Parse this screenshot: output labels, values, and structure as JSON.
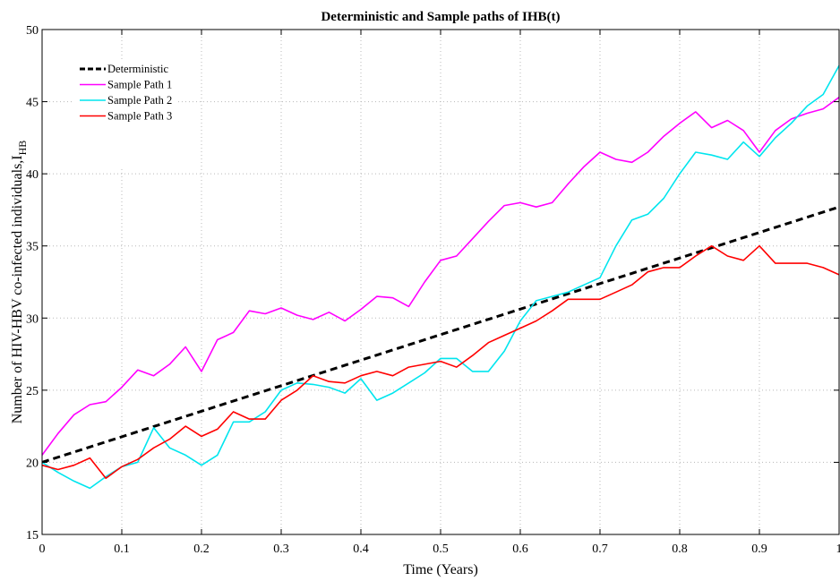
{
  "chart_data": {
    "type": "line",
    "title": "Deterministic and Sample paths of IHB(t)",
    "xlabel": "Time (Years)",
    "ylabel": "Number of HIV-HBV co-infected individuals,I",
    "ylabel_subscript": "HB",
    "xlim": [
      0,
      1
    ],
    "ylim": [
      15,
      50
    ],
    "xticks": [
      "0",
      "0.1",
      "0.2",
      "0.3",
      "0.4",
      "0.5",
      "0.6",
      "0.7",
      "0.8",
      "0.9",
      "1"
    ],
    "yticks": [
      "15",
      "20",
      "25",
      "30",
      "35",
      "40",
      "45",
      "50"
    ],
    "grid": true,
    "legend_position": "top-left",
    "series": [
      {
        "name": "Deterministic",
        "color": "#000000",
        "style": "dashed",
        "x": [
          0,
          1
        ],
        "y": [
          20.0,
          37.7
        ]
      },
      {
        "name": "Sample Path 1",
        "color": "#ff00ff",
        "style": "solid",
        "x": [
          0,
          0.02,
          0.04,
          0.06,
          0.08,
          0.1,
          0.12,
          0.14,
          0.16,
          0.18,
          0.2,
          0.22,
          0.24,
          0.26,
          0.28,
          0.3,
          0.32,
          0.34,
          0.36,
          0.38,
          0.4,
          0.42,
          0.44,
          0.46,
          0.48,
          0.5,
          0.52,
          0.54,
          0.56,
          0.58,
          0.6,
          0.62,
          0.64,
          0.66,
          0.68,
          0.7,
          0.72,
          0.74,
          0.76,
          0.78,
          0.8,
          0.82,
          0.84,
          0.86,
          0.88,
          0.9,
          0.92,
          0.94,
          0.96,
          0.98,
          1.0
        ],
        "y": [
          20.5,
          22.0,
          23.3,
          24.0,
          24.2,
          25.2,
          26.4,
          26.0,
          26.8,
          28.0,
          26.3,
          28.5,
          29.0,
          30.5,
          30.3,
          30.7,
          30.2,
          29.9,
          30.4,
          29.8,
          30.6,
          31.5,
          31.4,
          30.8,
          32.5,
          34.0,
          34.3,
          35.5,
          36.7,
          37.8,
          38.0,
          37.7,
          38.0,
          39.3,
          40.5,
          41.5,
          41.0,
          40.8,
          41.5,
          42.6,
          43.5,
          44.3,
          43.2,
          43.7,
          43.0,
          41.5,
          43.0,
          43.8,
          44.2,
          44.5,
          45.3
        ]
      },
      {
        "name": "Sample Path 2",
        "color": "#00e5ee",
        "style": "solid",
        "x": [
          0,
          0.02,
          0.04,
          0.06,
          0.08,
          0.1,
          0.12,
          0.14,
          0.16,
          0.18,
          0.2,
          0.22,
          0.24,
          0.26,
          0.28,
          0.3,
          0.32,
          0.34,
          0.36,
          0.38,
          0.4,
          0.42,
          0.44,
          0.46,
          0.48,
          0.5,
          0.52,
          0.54,
          0.56,
          0.58,
          0.6,
          0.62,
          0.64,
          0.66,
          0.68,
          0.7,
          0.72,
          0.74,
          0.76,
          0.78,
          0.8,
          0.82,
          0.84,
          0.86,
          0.88,
          0.9,
          0.92,
          0.94,
          0.96,
          0.98,
          1.0
        ],
        "y": [
          20.0,
          19.3,
          18.7,
          18.2,
          19.0,
          19.7,
          20.0,
          22.4,
          21.0,
          20.5,
          19.8,
          20.5,
          22.8,
          22.8,
          23.5,
          25.0,
          25.5,
          25.4,
          25.2,
          24.8,
          25.8,
          24.3,
          24.8,
          25.5,
          26.2,
          27.2,
          27.2,
          26.3,
          26.3,
          27.7,
          29.8,
          31.2,
          31.5,
          31.8,
          32.3,
          32.8,
          35.0,
          36.8,
          37.2,
          38.3,
          40.0,
          41.5,
          41.3,
          41.0,
          42.2,
          41.2,
          42.5,
          43.5,
          44.7,
          45.5,
          47.5
        ]
      },
      {
        "name": "Sample Path 3",
        "color": "#ff0000",
        "style": "solid",
        "x": [
          0,
          0.02,
          0.04,
          0.06,
          0.08,
          0.1,
          0.12,
          0.14,
          0.16,
          0.18,
          0.2,
          0.22,
          0.24,
          0.26,
          0.28,
          0.3,
          0.32,
          0.34,
          0.36,
          0.38,
          0.4,
          0.42,
          0.44,
          0.46,
          0.48,
          0.5,
          0.52,
          0.54,
          0.56,
          0.58,
          0.6,
          0.62,
          0.64,
          0.66,
          0.68,
          0.7,
          0.72,
          0.74,
          0.76,
          0.78,
          0.8,
          0.82,
          0.84,
          0.86,
          0.88,
          0.9,
          0.92,
          0.94,
          0.96,
          0.98,
          1.0
        ],
        "y": [
          19.8,
          19.5,
          19.8,
          20.3,
          18.9,
          19.7,
          20.2,
          21.0,
          21.6,
          22.5,
          21.8,
          22.3,
          23.5,
          23.0,
          23.0,
          24.3,
          25.0,
          26.0,
          25.6,
          25.5,
          26.0,
          26.3,
          26.0,
          26.6,
          26.8,
          27.0,
          26.6,
          27.4,
          28.3,
          28.8,
          29.3,
          29.8,
          30.5,
          31.3,
          31.3,
          31.3,
          31.8,
          32.3,
          33.2,
          33.5,
          33.5,
          34.3,
          35.0,
          34.3,
          34.0,
          35.0,
          33.8,
          33.8,
          33.8,
          33.5,
          33.0
        ]
      }
    ]
  }
}
